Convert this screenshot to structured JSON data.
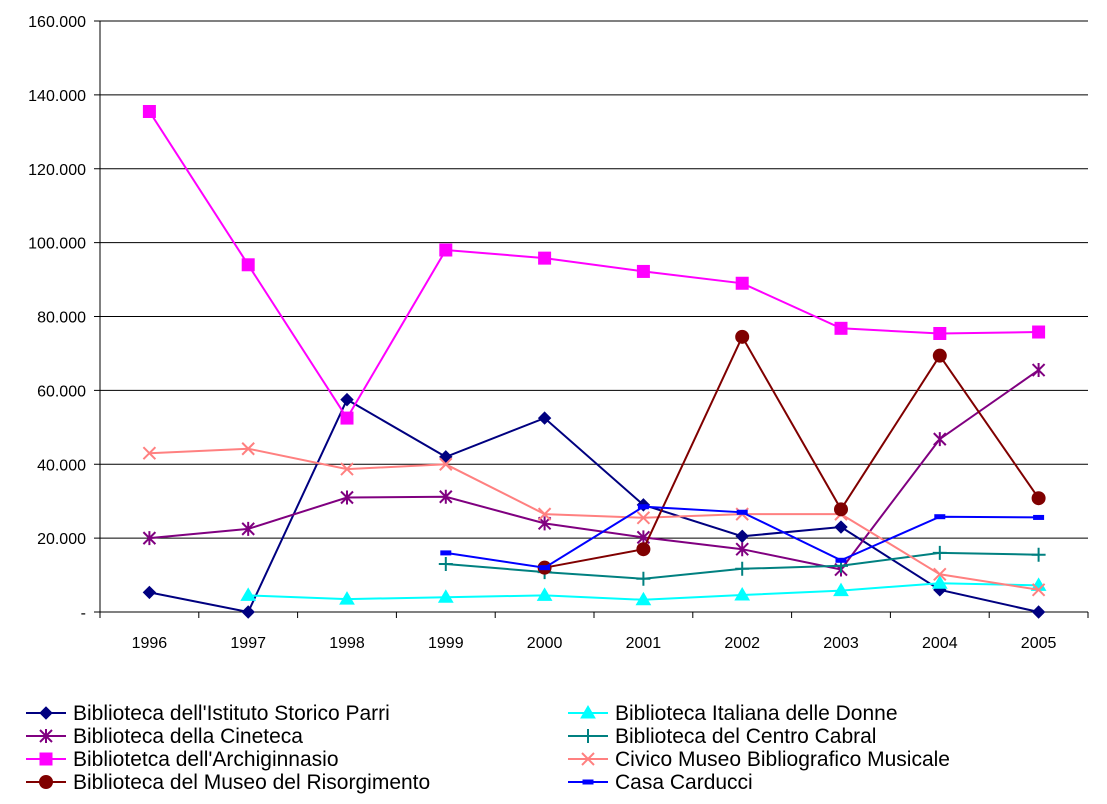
{
  "chart_data": {
    "type": "line",
    "title": "",
    "xlabel": "",
    "ylabel": "",
    "categories": [
      "1996",
      "1997",
      "1998",
      "1999",
      "2000",
      "2001",
      "2002",
      "2003",
      "2004",
      "2005"
    ],
    "ylim": [
      0,
      160000
    ],
    "y_ticks": [
      {
        "value": 0,
        "label": "-"
      },
      {
        "value": 20000,
        "label": "20.000"
      },
      {
        "value": 40000,
        "label": "40.000"
      },
      {
        "value": 60000,
        "label": "60.000"
      },
      {
        "value": 80000,
        "label": "80.000"
      },
      {
        "value": 100000,
        "label": "100.000"
      },
      {
        "value": 120000,
        "label": "120.000"
      },
      {
        "value": 140000,
        "label": "140.000"
      },
      {
        "value": 160000,
        "label": "160.000"
      }
    ],
    "grid": "horizontal",
    "legend_position": "bottom",
    "series": [
      {
        "name": "Biblioteca dell'Istituto Storico Parri",
        "color": "#000080",
        "marker": "diamond",
        "values": [
          5300,
          0,
          57500,
          42000,
          52500,
          29000,
          20500,
          23000,
          6000,
          0
        ]
      },
      {
        "name": "Biblioteca Italiana delle Donne",
        "color": "#00FFFF",
        "marker": "triangle",
        "values": [
          null,
          4500,
          3500,
          4000,
          4500,
          3300,
          4600,
          5800,
          7800,
          7200
        ]
      },
      {
        "name": "Biblioteca della Cineteca",
        "color": "#800080",
        "marker": "star",
        "values": [
          20000,
          22500,
          31000,
          31200,
          24000,
          20200,
          17000,
          11500,
          46800,
          65500
        ]
      },
      {
        "name": "Biblioteca del Centro Cabral",
        "color": "#008080",
        "marker": "plus",
        "values": [
          null,
          null,
          null,
          13000,
          10800,
          9000,
          11700,
          12500,
          16000,
          15500
        ]
      },
      {
        "name": "Bibliotetca dell'Archiginnasio",
        "color": "#FF00FF",
        "marker": "square",
        "values": [
          135500,
          94000,
          52500,
          98000,
          95800,
          92200,
          89000,
          76800,
          75400,
          75800
        ]
      },
      {
        "name": "Civico Museo Bibliografico Musicale",
        "color": "#FF8080",
        "marker": "x",
        "values": [
          43000,
          44200,
          38700,
          40000,
          26500,
          25500,
          26500,
          26500,
          10200,
          6000
        ]
      },
      {
        "name": "Biblioteca del Museo del Risorgimento",
        "color": "#800000",
        "marker": "circle",
        "values": [
          null,
          null,
          null,
          null,
          12000,
          17000,
          74500,
          27800,
          69400,
          30800
        ]
      },
      {
        "name": "Casa Carducci",
        "color": "#0000FF",
        "marker": "dash",
        "values": [
          null,
          null,
          null,
          16000,
          12000,
          28500,
          27000,
          14000,
          25800,
          25600
        ]
      }
    ]
  }
}
